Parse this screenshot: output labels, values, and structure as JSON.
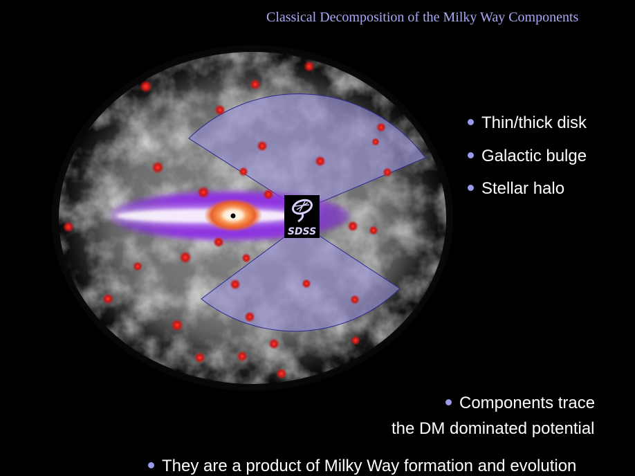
{
  "title": "Classical Decomposition of the Milky Way Components",
  "bullets": [
    "Thin/thick disk",
    "Galactic bulge",
    "Stellar halo"
  ],
  "trace": {
    "line1": "Components trace",
    "line2": "the DM dominated potential"
  },
  "formation": "They are a product of Milky Way formation and evolution",
  "logo": {
    "text": "SDSS"
  },
  "colors": {
    "title": "#a9a9f5",
    "bullet_dot": "#9b9be8",
    "disk": "#8a2be2",
    "bulge": "#f07a3a",
    "globular_cluster": "#d81c1c",
    "survey_wedge": "#9a8fd6"
  }
}
